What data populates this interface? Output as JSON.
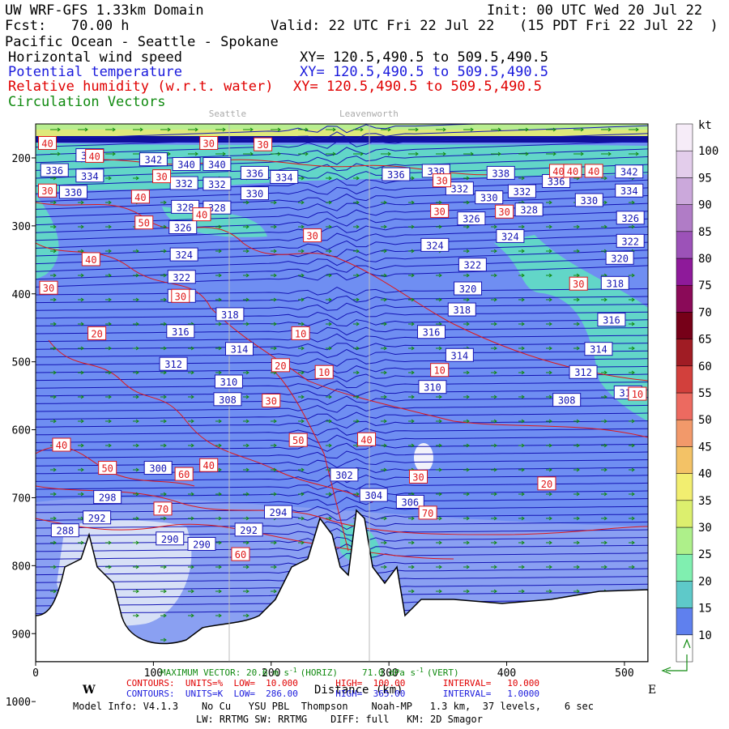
{
  "header": {
    "model": "UW WRF-GFS 1.33km Domain",
    "init": "Init: 00 UTC Wed 20 Jul 22",
    "fcst": "Fcst:   70.00 h",
    "valid": "Valid: 22 UTC Fri 22 Jul 22   (15 PDT Fri 22 Jul 22  )",
    "region": "Pacific Ocean - Seattle - Spokane",
    "field1": "Horizontal wind speed",
    "field1_xy": "XY= 120.5,490.5 to 509.5,490.5",
    "field2": "Potential temperature",
    "field2_xy": "XY= 120.5,490.5 to 509.5,490.5",
    "field3": "Relative humidity (w.r.t. water)",
    "field3_xy": "XY= 120.5,490.5 to 509.5,490.5",
    "field4": "Circulation Vectors"
  },
  "footer": {
    "max_vector": "MAXIMUM VECTOR: 20.6 m s",
    "max_vector_sup": "-1",
    "max_vector_horiz": "(HORIZ)",
    "max_vector_vert": "71.0 dPa s",
    "max_vector_vert_sup": "-1",
    "max_vector_vert_tail": "(VERT)",
    "rh_contours": "CONTOURS:  UNITS=%  LOW=  10.000       HIGH=  100.00       INTERVAL=   10.000",
    "theta_contours": "CONTOURS:  UNITS=K  LOW=  286.00       HIGH=  365.00       INTERVAL=   1.0000",
    "model_info": "Model Info: V4.1.3    No Cu   YSU PBL  Thompson    Noah-MP   1.3 km,  37 levels,    6 sec",
    "physics": "LW: RRTMG SW: RRTMG    DIFF: full   KM: 2D Smagor"
  },
  "chart_data": {
    "type": "heatmap",
    "xlabel": "Distance (km)",
    "ylabel": "",
    "xlim": [
      0,
      520
    ],
    "x_ticks": [
      0,
      100,
      200,
      300,
      400,
      500
    ],
    "y_ticks": [
      200,
      300,
      400,
      500,
      600,
      700,
      800,
      900,
      1000
    ],
    "y_tick_labels": [
      "200",
      "300",
      "400",
      "500",
      "600",
      "700",
      "800",
      "900",
      "1000"
    ],
    "west_label": "W",
    "east_label": "E",
    "locations": [
      {
        "name": "Seattle",
        "x": 163
      },
      {
        "name": "Leavenworth",
        "x": 283
      }
    ],
    "colorbar": {
      "unit": "kt",
      "levels": [
        10,
        15,
        20,
        25,
        30,
        35,
        40,
        45,
        50,
        55,
        60,
        65,
        70,
        75,
        80,
        85,
        90,
        95,
        100
      ],
      "colors": [
        "#ffffff",
        "#5f80ee",
        "#5ec9c9",
        "#80efb0",
        "#aef08a",
        "#dcef6e",
        "#f2ee70",
        "#f3c266",
        "#f2996a",
        "#ec6a60",
        "#d2403c",
        "#a01c24",
        "#760018",
        "#8a0a58",
        "#8e1a9a",
        "#9c52b8",
        "#b07cc6",
        "#cba8db",
        "#e3cdeb",
        "#f6ecf8"
      ]
    },
    "theta_labels": [
      {
        "x": 46,
        "y": 196,
        "v": "344"
      },
      {
        "x": 46,
        "y": 226,
        "v": "334"
      },
      {
        "x": 16,
        "y": 218,
        "v": "336"
      },
      {
        "x": 32,
        "y": 250,
        "v": "330"
      },
      {
        "x": 100,
        "y": 202,
        "v": "342"
      },
      {
        "x": 128,
        "y": 209,
        "v": "340"
      },
      {
        "x": 154,
        "y": 209,
        "v": "340"
      },
      {
        "x": 126,
        "y": 237,
        "v": "332"
      },
      {
        "x": 154,
        "y": 238,
        "v": "332"
      },
      {
        "x": 186,
        "y": 222,
        "v": "336"
      },
      {
        "x": 211,
        "y": 228,
        "v": "334"
      },
      {
        "x": 186,
        "y": 252,
        "v": "330"
      },
      {
        "x": 127,
        "y": 272,
        "v": "328"
      },
      {
        "x": 154,
        "y": 273,
        "v": "328"
      },
      {
        "x": 125,
        "y": 302,
        "v": "326"
      },
      {
        "x": 126,
        "y": 342,
        "v": "324"
      },
      {
        "x": 124,
        "y": 375,
        "v": "322"
      },
      {
        "x": 124,
        "y": 403,
        "v": "320"
      },
      {
        "x": 165,
        "y": 430,
        "v": "318"
      },
      {
        "x": 123,
        "y": 455,
        "v": "316"
      },
      {
        "x": 173,
        "y": 481,
        "v": "314"
      },
      {
        "x": 117,
        "y": 503,
        "v": "312"
      },
      {
        "x": 164,
        "y": 529,
        "v": "310"
      },
      {
        "x": 163,
        "y": 555,
        "v": "308"
      },
      {
        "x": 306,
        "y": 224,
        "v": "336"
      },
      {
        "x": 340,
        "y": 219,
        "v": "338"
      },
      {
        "x": 360,
        "y": 245,
        "v": "332"
      },
      {
        "x": 395,
        "y": 222,
        "v": "338"
      },
      {
        "x": 385,
        "y": 258,
        "v": "330"
      },
      {
        "x": 413,
        "y": 249,
        "v": "332"
      },
      {
        "x": 442,
        "y": 234,
        "v": "336"
      },
      {
        "x": 419,
        "y": 276,
        "v": "328"
      },
      {
        "x": 470,
        "y": 262,
        "v": "330"
      },
      {
        "x": 504,
        "y": 220,
        "v": "342"
      },
      {
        "x": 504,
        "y": 248,
        "v": "334"
      },
      {
        "x": 370,
        "y": 289,
        "v": "326"
      },
      {
        "x": 505,
        "y": 288,
        "v": "326"
      },
      {
        "x": 403,
        "y": 315,
        "v": "324"
      },
      {
        "x": 339,
        "y": 328,
        "v": "324"
      },
      {
        "x": 505,
        "y": 322,
        "v": "322"
      },
      {
        "x": 371,
        "y": 357,
        "v": "322"
      },
      {
        "x": 496,
        "y": 347,
        "v": "320"
      },
      {
        "x": 367,
        "y": 392,
        "v": "320"
      },
      {
        "x": 492,
        "y": 384,
        "v": "318"
      },
      {
        "x": 362,
        "y": 423,
        "v": "318"
      },
      {
        "x": 489,
        "y": 438,
        "v": "316"
      },
      {
        "x": 336,
        "y": 456,
        "v": "316"
      },
      {
        "x": 360,
        "y": 490,
        "v": "314"
      },
      {
        "x": 478,
        "y": 481,
        "v": "314"
      },
      {
        "x": 465,
        "y": 515,
        "v": "312"
      },
      {
        "x": 337,
        "y": 537,
        "v": "310"
      },
      {
        "x": 451,
        "y": 556,
        "v": "308"
      },
      {
        "x": 503,
        "y": 545,
        "v": "310"
      },
      {
        "x": 104,
        "y": 656,
        "v": "300"
      },
      {
        "x": 61,
        "y": 699,
        "v": "298"
      },
      {
        "x": 52,
        "y": 729,
        "v": "292"
      },
      {
        "x": 25,
        "y": 748,
        "v": "288"
      },
      {
        "x": 114,
        "y": 760,
        "v": "290"
      },
      {
        "x": 141,
        "y": 768,
        "v": "290"
      },
      {
        "x": 181,
        "y": 747,
        "v": "292"
      },
      {
        "x": 206,
        "y": 721,
        "v": "294"
      },
      {
        "x": 262,
        "y": 666,
        "v": "302"
      },
      {
        "x": 287,
        "y": 696,
        "v": "304"
      },
      {
        "x": 318,
        "y": 706,
        "v": "306"
      }
    ],
    "rh_labels": [
      {
        "x": 10,
        "y": 178,
        "v": "40"
      },
      {
        "x": 50,
        "y": 197,
        "v": "40"
      },
      {
        "x": 10,
        "y": 248,
        "v": "30"
      },
      {
        "x": 107,
        "y": 227,
        "v": "30"
      },
      {
        "x": 147,
        "y": 178,
        "v": "30"
      },
      {
        "x": 193,
        "y": 180,
        "v": "30"
      },
      {
        "x": 89,
        "y": 257,
        "v": "40"
      },
      {
        "x": 92,
        "y": 295,
        "v": "50"
      },
      {
        "x": 141,
        "y": 283,
        "v": "40"
      },
      {
        "x": 47,
        "y": 349,
        "v": "40"
      },
      {
        "x": 11,
        "y": 391,
        "v": "30"
      },
      {
        "x": 235,
        "y": 314,
        "v": "30"
      },
      {
        "x": 123,
        "y": 403,
        "v": "30"
      },
      {
        "x": 52,
        "y": 458,
        "v": "20"
      },
      {
        "x": 225,
        "y": 458,
        "v": "10"
      },
      {
        "x": 208,
        "y": 505,
        "v": "20"
      },
      {
        "x": 245,
        "y": 515,
        "v": "10"
      },
      {
        "x": 200,
        "y": 557,
        "v": "30"
      },
      {
        "x": 343,
        "y": 278,
        "v": "30"
      },
      {
        "x": 345,
        "y": 233,
        "v": "30"
      },
      {
        "x": 444,
        "y": 219,
        "v": "40"
      },
      {
        "x": 456,
        "y": 219,
        "v": "40"
      },
      {
        "x": 474,
        "y": 219,
        "v": "40"
      },
      {
        "x": 398,
        "y": 279,
        "v": "30"
      },
      {
        "x": 461,
        "y": 385,
        "v": "30"
      },
      {
        "x": 343,
        "y": 512,
        "v": "10"
      },
      {
        "x": 511,
        "y": 547,
        "v": "10"
      },
      {
        "x": 22,
        "y": 622,
        "v": "40"
      },
      {
        "x": 61,
        "y": 656,
        "v": "50"
      },
      {
        "x": 126,
        "y": 665,
        "v": "60"
      },
      {
        "x": 147,
        "y": 652,
        "v": "40"
      },
      {
        "x": 223,
        "y": 615,
        "v": "50"
      },
      {
        "x": 281,
        "y": 614,
        "v": "40"
      },
      {
        "x": 325,
        "y": 669,
        "v": "30"
      },
      {
        "x": 434,
        "y": 679,
        "v": "20"
      },
      {
        "x": 108,
        "y": 716,
        "v": "70"
      },
      {
        "x": 333,
        "y": 722,
        "v": "70"
      },
      {
        "x": 174,
        "y": 783,
        "v": "60"
      }
    ]
  }
}
